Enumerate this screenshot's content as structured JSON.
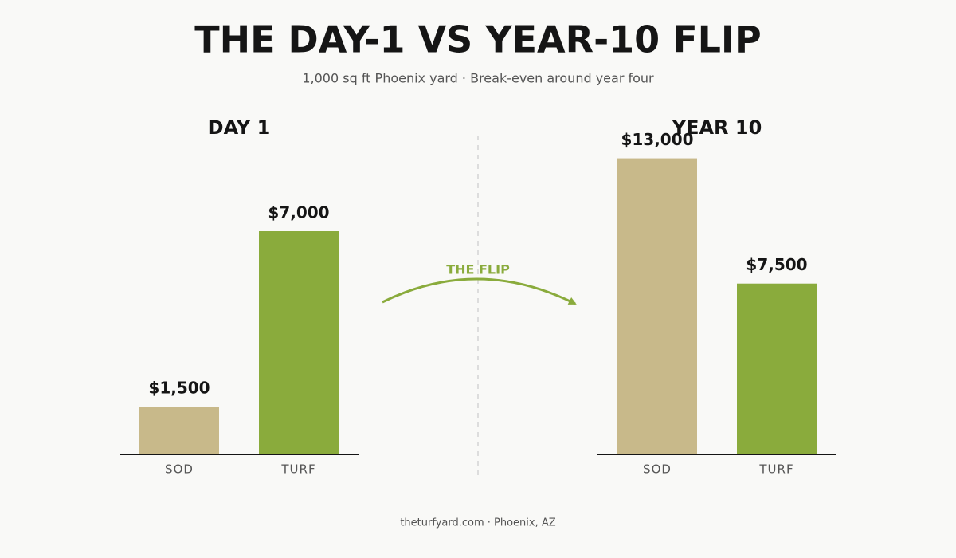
{
  "header": {
    "title": "THE DAY-1 VS YEAR-10 FLIP",
    "subtitle": "1,000 sq ft Phoenix yard · Break-even around year four"
  },
  "annotation": "THE FLIP",
  "footer": "theturfyard.com · Phoenix, AZ",
  "chart_data": [
    {
      "type": "bar",
      "title": "DAY 1",
      "categories": [
        "SOD",
        "TURF"
      ],
      "values": [
        1500,
        7000
      ],
      "value_labels": [
        "$1,500",
        "$7,000"
      ],
      "colors": [
        "#c8b98a",
        "#8aab3c"
      ],
      "ylim": [
        0,
        10000
      ]
    },
    {
      "type": "bar",
      "title": "YEAR 10",
      "categories": [
        "SOD",
        "TURF"
      ],
      "values": [
        13000,
        7500
      ],
      "value_labels": [
        "$13,000",
        "$7,500"
      ],
      "colors": [
        "#c8b98a",
        "#8aab3c"
      ],
      "ylim": [
        0,
        14000
      ]
    }
  ]
}
